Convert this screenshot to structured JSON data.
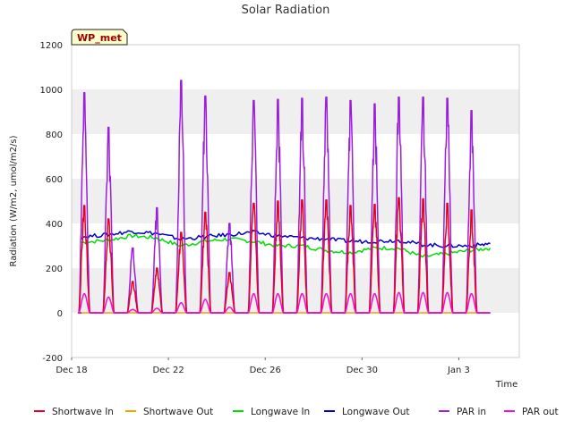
{
  "chart_data": {
    "type": "line",
    "title": "Solar Radiation",
    "xlabel": "Time",
    "ylabel": "Radiation (W/m2, umol/m2/s)",
    "station_label": "WP_met",
    "ylim": [
      -200,
      1200
    ],
    "yticks": [
      -200,
      0,
      200,
      400,
      600,
      800,
      1000,
      1200
    ],
    "xlim_days": [
      0,
      18.5
    ],
    "xticks": [
      {
        "label": "Dec 18",
        "day": 0
      },
      {
        "label": "Dec 22",
        "day": 4
      },
      {
        "label": "Dec 26",
        "day": 8
      },
      {
        "label": "Dec 30",
        "day": 12
      },
      {
        "label": "Jan 3",
        "day": 16
      }
    ],
    "grid": "horizontal bands",
    "legend_position": "bottom",
    "days": [
      0,
      1,
      2,
      3,
      4,
      5,
      6,
      7,
      8,
      9,
      10,
      11,
      12,
      13,
      14,
      15,
      16
    ],
    "series": [
      {
        "name": "Shortwave In",
        "color": "#e8001c",
        "kind": "diurnal",
        "peaks": [
          480,
          420,
          140,
          200,
          360,
          450,
          180,
          490,
          500,
          505,
          505,
          480,
          485,
          515,
          510,
          490,
          460
        ]
      },
      {
        "name": "Shortwave Out",
        "color": "#f5a000",
        "kind": "diurnal",
        "peaks": [
          0,
          0,
          0,
          0,
          0,
          0,
          0,
          0,
          0,
          0,
          0,
          0,
          0,
          0,
          0,
          0,
          0
        ]
      },
      {
        "name": "Longwave In",
        "color": "#00dd00",
        "kind": "baseline",
        "points": [
          [
            0.4,
            315
          ],
          [
            1.5,
            325
          ],
          [
            2.5,
            345
          ],
          [
            3.5,
            335
          ],
          [
            4.5,
            300
          ],
          [
            5.5,
            320
          ],
          [
            6.5,
            330
          ],
          [
            7.5,
            320
          ],
          [
            8.5,
            300
          ],
          [
            9.5,
            300
          ],
          [
            10.5,
            280
          ],
          [
            11.5,
            270
          ],
          [
            12.5,
            290
          ],
          [
            13.5,
            290
          ],
          [
            14.5,
            250
          ],
          [
            15.5,
            265
          ],
          [
            16.5,
            280
          ],
          [
            17.3,
            290
          ]
        ]
      },
      {
        "name": "Longwave Out",
        "color": "#0000cc",
        "kind": "baseline",
        "points": [
          [
            0.4,
            340
          ],
          [
            1.5,
            350
          ],
          [
            2.5,
            365
          ],
          [
            3.5,
            355
          ],
          [
            4.5,
            330
          ],
          [
            5.5,
            340
          ],
          [
            6.5,
            350
          ],
          [
            7.5,
            360
          ],
          [
            8.5,
            345
          ],
          [
            9.5,
            335
          ],
          [
            10.5,
            330
          ],
          [
            11.5,
            320
          ],
          [
            12.5,
            320
          ],
          [
            13.5,
            325
          ],
          [
            14.5,
            305
          ],
          [
            15.5,
            300
          ],
          [
            16.5,
            300
          ],
          [
            17.3,
            310
          ]
        ]
      },
      {
        "name": "PAR in",
        "color": "#9b1ee0",
        "kind": "diurnal",
        "peaks": [
          985,
          830,
          290,
          470,
          1040,
          970,
          400,
          950,
          955,
          960,
          965,
          950,
          935,
          965,
          965,
          960,
          905
        ]
      },
      {
        "name": "PAR out",
        "color": "#ee10d4",
        "kind": "diurnal",
        "peaks": [
          85,
          70,
          15,
          20,
          45,
          60,
          25,
          85,
          85,
          85,
          85,
          85,
          85,
          90,
          90,
          90,
          85
        ]
      }
    ]
  }
}
